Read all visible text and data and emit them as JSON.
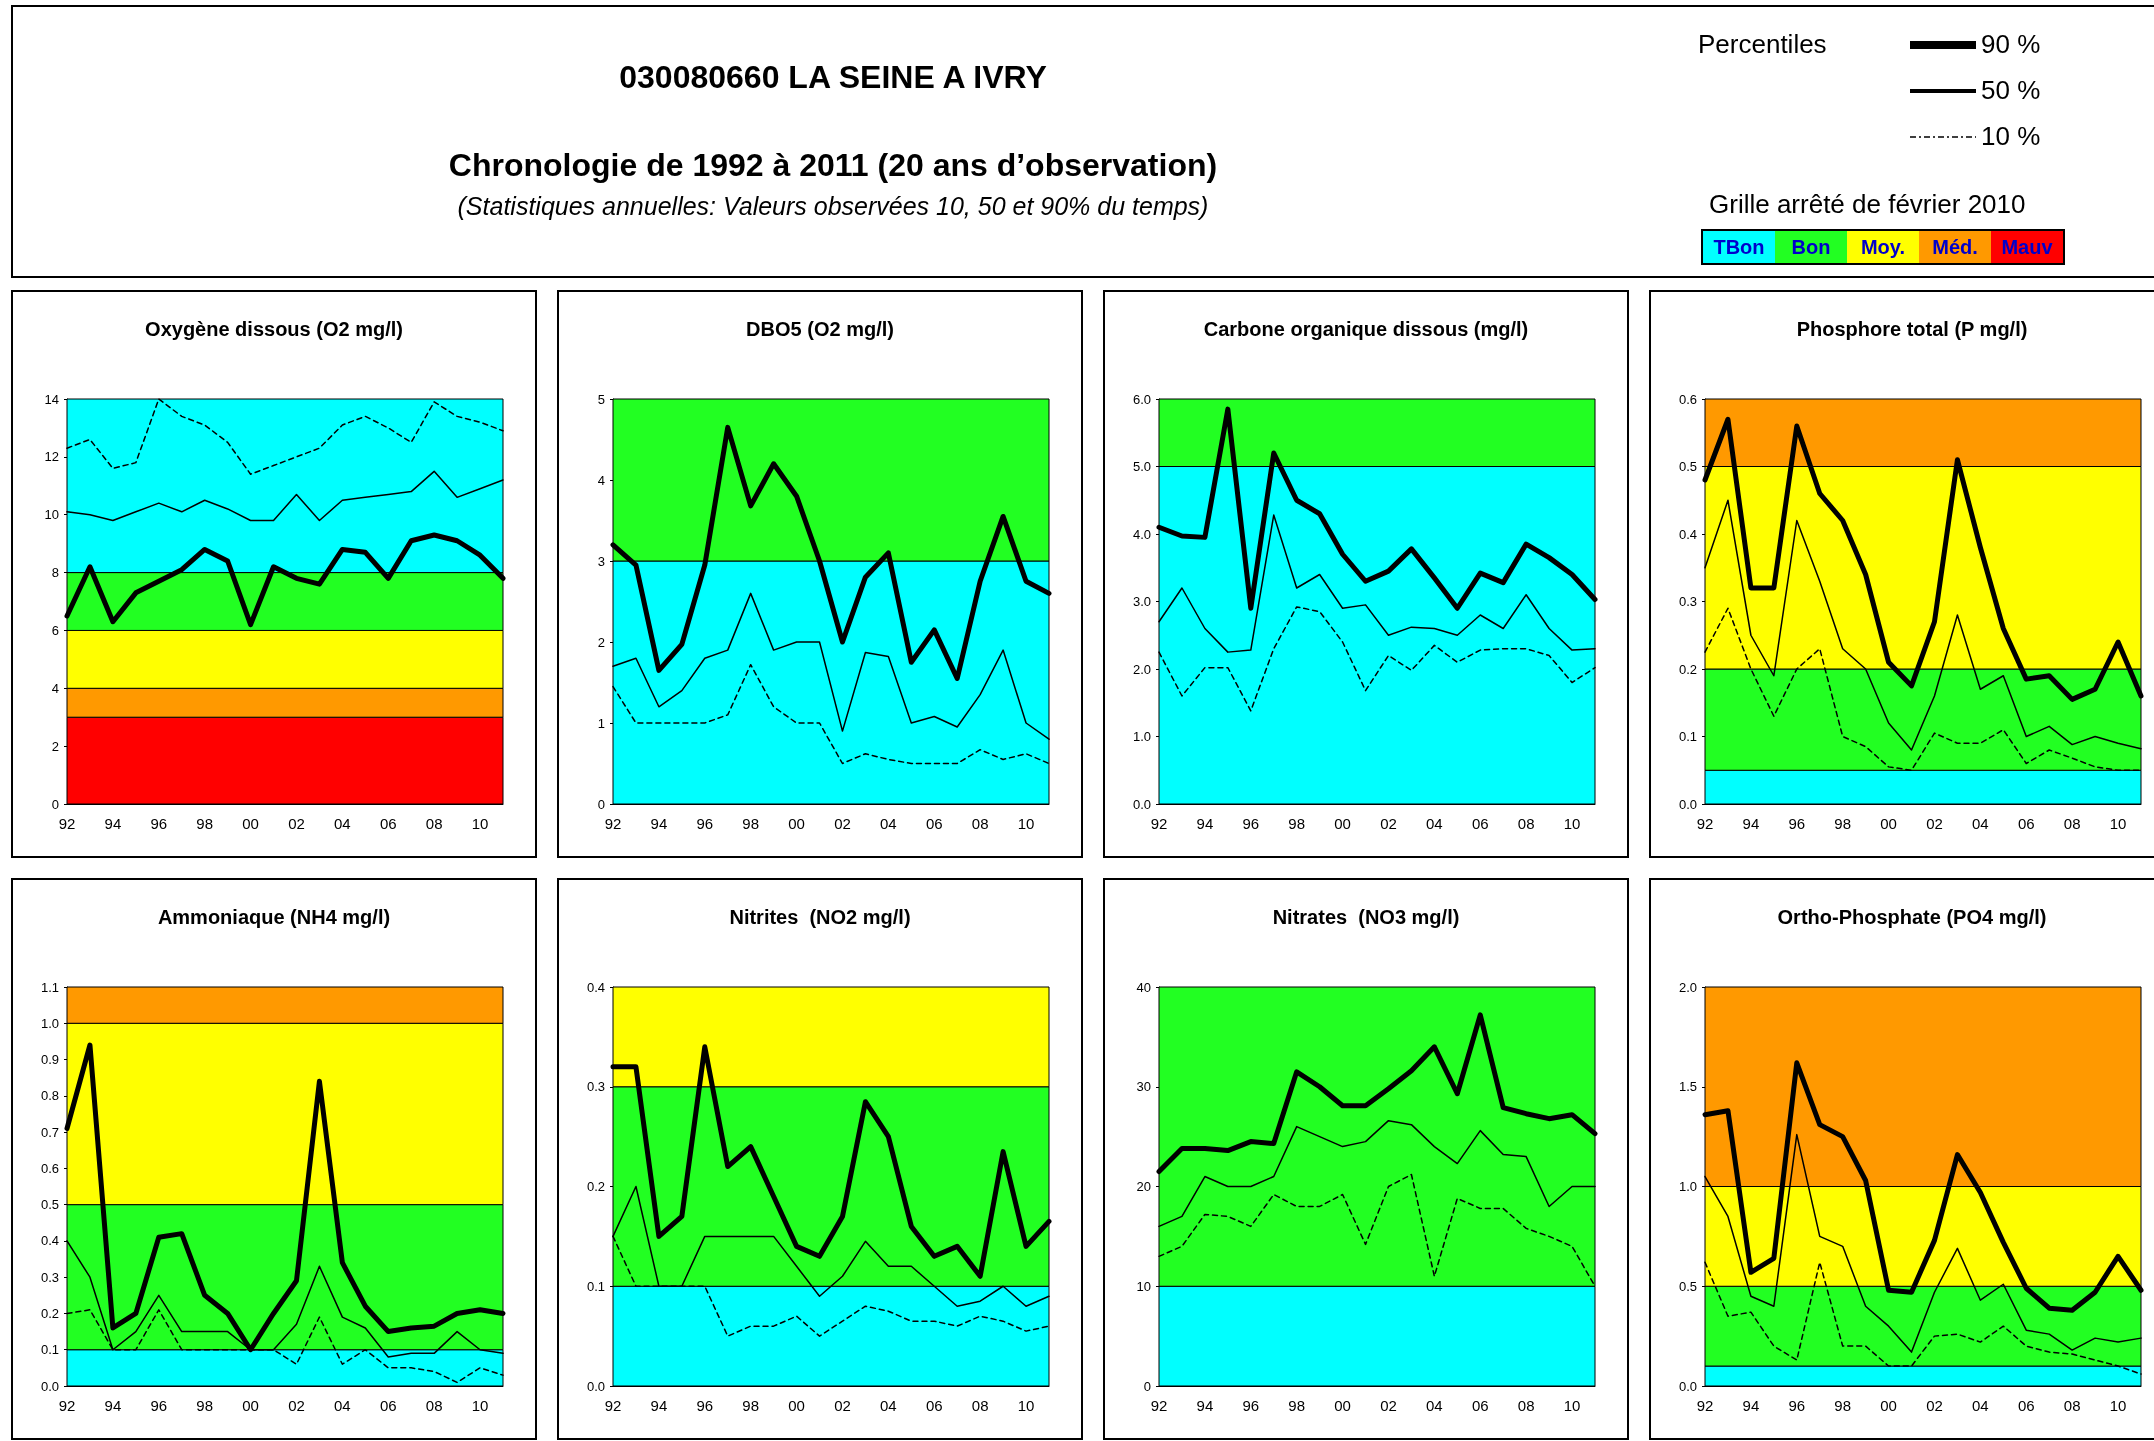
{
  "chart_data": [
    {
      "type": "other",
      "title": "030080660 LA SEINE A IVRY",
      "subtitle": "Chronologie de 1992 à 2011 (20 ans d’observation)",
      "annotations": [
        "(Statistiques annuelles: Valeurs observées 10, 50 et 90% du temps)",
        "Percentiles",
        "90 %",
        "50 %",
        "10 %",
        "Grille arrêté de février 2010"
      ],
      "categories": [
        "TBon",
        "Bon",
        "Moy.",
        "Méd.",
        "Mauv"
      ],
      "colors": [
        "#00ffff",
        "#22ff22",
        "#ffff00",
        "#ff9900",
        "#ff0000"
      ]
    },
    {
      "type": "line",
      "title": "Oxygène dissous (O2 mg/l)",
      "categories": [
        "92",
        null,
        "94",
        null,
        "96",
        null,
        "98",
        null,
        "00",
        null,
        "02",
        null,
        "04",
        null,
        "06",
        null,
        "08",
        null,
        "10",
        null
      ],
      "ylim": [
        0,
        14
      ],
      "yticks": [
        0,
        2,
        4,
        6,
        8,
        10,
        12,
        14
      ],
      "marker": "none",
      "bands": [
        {
          "axis": "y",
          "from": 0,
          "to": 3,
          "color": "#ff0000"
        },
        {
          "axis": "y",
          "from": 3,
          "to": 4,
          "color": "#ff9900"
        },
        {
          "axis": "y",
          "from": 4,
          "to": 6,
          "color": "#ffff00"
        },
        {
          "axis": "y",
          "from": 6,
          "to": 8,
          "color": "#22ff22"
        },
        {
          "axis": "y",
          "from": 8,
          "to": 14,
          "color": "#00ffff"
        }
      ],
      "series": [
        {
          "color": "#000000",
          "line_style": "solid",
          "values": [
            6.5,
            8.2,
            6.3,
            7.3,
            7.7,
            8.1,
            8.8,
            8.4,
            6.2,
            8.2,
            7.8,
            7.6,
            8.8,
            8.7,
            7.8,
            9.1,
            9.3,
            9.1,
            8.6,
            7.8
          ]
        },
        {
          "color": "#000000",
          "line_style": "solid",
          "values": [
            10.1,
            10.0,
            9.8,
            10.1,
            10.4,
            10.1,
            10.5,
            10.2,
            9.8,
            9.8,
            10.7,
            9.8,
            10.5,
            10.6,
            10.7,
            10.8,
            11.5,
            10.6,
            10.9,
            11.2
          ]
        },
        {
          "color": "#000000",
          "line_style": "dashed",
          "values": [
            12.3,
            12.6,
            11.6,
            11.8,
            14.0,
            13.4,
            13.1,
            12.5,
            11.4,
            11.7,
            12.0,
            12.3,
            13.1,
            13.4,
            13.0,
            12.5,
            13.9,
            13.4,
            13.2,
            12.9
          ]
        }
      ]
    },
    {
      "type": "line",
      "title": "DBO5 (O2 mg/l)",
      "categories": [
        "92",
        null,
        "94",
        null,
        "96",
        null,
        "98",
        null,
        "00",
        null,
        "02",
        null,
        "04",
        null,
        "06",
        null,
        "08",
        null,
        "10",
        null
      ],
      "ylim": [
        0,
        5
      ],
      "yticks": [
        0,
        1,
        2,
        3,
        4,
        5
      ],
      "marker": "none",
      "bands": [
        {
          "axis": "y",
          "from": 0,
          "to": 3,
          "color": "#00ffff"
        },
        {
          "axis": "y",
          "from": 3,
          "to": 5,
          "color": "#22ff22"
        }
      ],
      "series": [
        {
          "color": "#000000",
          "line_style": "solid",
          "values": [
            3.2,
            2.95,
            1.65,
            1.97,
            2.95,
            4.65,
            3.68,
            4.2,
            3.8,
            3.0,
            2.0,
            2.8,
            3.1,
            1.75,
            2.15,
            1.55,
            2.75,
            3.55,
            2.75,
            2.6
          ]
        },
        {
          "color": "#000000",
          "line_style": "solid",
          "values": [
            1.7,
            1.8,
            1.2,
            1.4,
            1.8,
            1.9,
            2.6,
            1.9,
            2.0,
            2.0,
            0.9,
            1.87,
            1.82,
            1.0,
            1.08,
            0.95,
            1.35,
            1.9,
            1.0,
            0.8
          ]
        },
        {
          "color": "#000000",
          "line_style": "dashed",
          "values": [
            1.45,
            1.0,
            1.0,
            1.0,
            1.0,
            1.1,
            1.72,
            1.2,
            1.0,
            1.0,
            0.5,
            0.62,
            0.55,
            0.5,
            0.5,
            0.5,
            0.67,
            0.55,
            0.62,
            0.5
          ]
        }
      ]
    },
    {
      "type": "line",
      "title": "Carbone organique dissous (mg/l)",
      "categories": [
        "92",
        null,
        "94",
        null,
        "96",
        null,
        "98",
        null,
        "00",
        null,
        "02",
        null,
        "04",
        null,
        "06",
        null,
        "08",
        null,
        "10",
        null
      ],
      "ylim": [
        0,
        6
      ],
      "yticks": [
        {
          "value": 0,
          "label": "0.0"
        },
        {
          "value": 1,
          "label": "1.0"
        },
        {
          "value": 2,
          "label": "2.0"
        },
        {
          "value": 3,
          "label": "3.0"
        },
        {
          "value": 4,
          "label": "4.0"
        },
        {
          "value": 5,
          "label": "5.0"
        },
        {
          "value": 6,
          "label": "6.0"
        }
      ],
      "marker": "none",
      "bands": [
        {
          "axis": "y",
          "from": 0,
          "to": 5,
          "color": "#00ffff"
        },
        {
          "axis": "y",
          "from": 5,
          "to": 6,
          "color": "#22ff22"
        }
      ],
      "series": [
        {
          "color": "#000000",
          "line_style": "solid",
          "values": [
            4.1,
            3.97,
            3.95,
            5.85,
            2.9,
            5.2,
            4.5,
            4.3,
            3.7,
            3.3,
            3.45,
            3.78,
            3.35,
            2.9,
            3.42,
            3.28,
            3.85,
            3.65,
            3.4,
            3.03
          ]
        },
        {
          "color": "#000000",
          "line_style": "solid",
          "values": [
            2.7,
            3.2,
            2.6,
            2.25,
            2.28,
            4.28,
            3.2,
            3.4,
            2.9,
            2.95,
            2.5,
            2.62,
            2.6,
            2.5,
            2.8,
            2.6,
            3.1,
            2.6,
            2.28,
            2.3
          ]
        },
        {
          "color": "#000000",
          "line_style": "dashed",
          "values": [
            2.25,
            1.6,
            2.02,
            2.02,
            1.38,
            2.3,
            2.92,
            2.85,
            2.4,
            1.68,
            2.2,
            1.98,
            2.35,
            2.1,
            2.28,
            2.3,
            2.3,
            2.2,
            1.8,
            2.02
          ]
        }
      ]
    },
    {
      "type": "line",
      "title": "Phosphore total (P mg/l)",
      "categories": [
        "92",
        null,
        "94",
        null,
        "96",
        null,
        "98",
        null,
        "00",
        null,
        "02",
        null,
        "04",
        null,
        "06",
        null,
        "08",
        null,
        "10",
        null
      ],
      "ylim": [
        0,
        0.6
      ],
      "yticks": [
        {
          "value": 0,
          "label": "0.0"
        },
        0.1,
        0.2,
        0.3,
        0.4,
        0.5,
        0.6
      ],
      "marker": "none",
      "bands": [
        {
          "axis": "y",
          "from": 0,
          "to": 0.05,
          "color": "#00ffff"
        },
        {
          "axis": "y",
          "from": 0.05,
          "to": 0.2,
          "color": "#22ff22"
        },
        {
          "axis": "y",
          "from": 0.2,
          "to": 0.5,
          "color": "#ffff00"
        },
        {
          "axis": "y",
          "from": 0.5,
          "to": 0.6,
          "color": "#ff9900"
        }
      ],
      "series": [
        {
          "color": "#000000",
          "line_style": "solid",
          "values": [
            0.48,
            0.57,
            0.32,
            0.32,
            0.56,
            0.46,
            0.42,
            0.34,
            0.21,
            0.175,
            0.27,
            0.51,
            0.38,
            0.26,
            0.185,
            0.19,
            0.155,
            0.17,
            0.24,
            0.16
          ]
        },
        {
          "color": "#000000",
          "line_style": "solid",
          "values": [
            0.35,
            0.45,
            0.25,
            0.19,
            0.42,
            0.33,
            0.23,
            0.2,
            0.12,
            0.08,
            0.16,
            0.28,
            0.17,
            0.19,
            0.1,
            0.115,
            0.088,
            0.1,
            0.09,
            0.082
          ]
        },
        {
          "color": "#000000",
          "line_style": "dashed",
          "values": [
            0.225,
            0.29,
            0.2,
            0.13,
            0.2,
            0.23,
            0.1,
            0.085,
            0.055,
            0.05,
            0.105,
            0.09,
            0.09,
            0.11,
            0.06,
            0.08,
            0.068,
            0.055,
            0.05,
            0.05
          ]
        }
      ]
    },
    {
      "type": "line",
      "title": "Ammoniaque (NH4 mg/l)",
      "categories": [
        "92",
        null,
        "94",
        null,
        "96",
        null,
        "98",
        null,
        "00",
        null,
        "02",
        null,
        "04",
        null,
        "06",
        null,
        "08",
        null,
        "10",
        null
      ],
      "ylim": [
        0,
        1.1
      ],
      "yticks": [
        {
          "value": 0,
          "label": "0.0"
        },
        0.1,
        0.2,
        0.3,
        0.4,
        0.5,
        0.6,
        0.7,
        0.8,
        0.9,
        {
          "value": 1,
          "label": "1.0"
        },
        1.1
      ],
      "marker": "none",
      "bands": [
        {
          "axis": "y",
          "from": 0,
          "to": 0.1,
          "color": "#00ffff"
        },
        {
          "axis": "y",
          "from": 0.1,
          "to": 0.5,
          "color": "#22ff22"
        },
        {
          "axis": "y",
          "from": 0.5,
          "to": 1.0,
          "color": "#ffff00"
        },
        {
          "axis": "y",
          "from": 1.0,
          "to": 1.1,
          "color": "#ff9900"
        }
      ],
      "series": [
        {
          "color": "#000000",
          "line_style": "solid",
          "values": [
            0.71,
            0.94,
            0.16,
            0.2,
            0.41,
            0.42,
            0.25,
            0.2,
            0.1,
            0.2,
            0.29,
            0.84,
            0.34,
            0.22,
            0.15,
            0.16,
            0.165,
            0.2,
            0.21,
            0.2
          ]
        },
        {
          "color": "#000000",
          "line_style": "solid",
          "values": [
            0.4,
            0.3,
            0.1,
            0.15,
            0.25,
            0.15,
            0.15,
            0.15,
            0.1,
            0.1,
            0.17,
            0.33,
            0.19,
            0.16,
            0.08,
            0.09,
            0.09,
            0.15,
            0.1,
            0.09
          ]
        },
        {
          "color": "#000000",
          "line_style": "dashed",
          "values": [
            0.2,
            0.21,
            0.1,
            0.1,
            0.21,
            0.1,
            0.1,
            0.1,
            0.1,
            0.1,
            0.06,
            0.19,
            0.06,
            0.1,
            0.05,
            0.05,
            0.04,
            0.01,
            0.05,
            0.03
          ]
        }
      ]
    },
    {
      "type": "line",
      "title": "Nitrites  (NO2 mg/l)",
      "categories": [
        "92",
        null,
        "94",
        null,
        "96",
        null,
        "98",
        null,
        "00",
        null,
        "02",
        null,
        "04",
        null,
        "06",
        null,
        "08",
        null,
        "10",
        null
      ],
      "ylim": [
        0,
        0.4
      ],
      "yticks": [
        {
          "value": 0,
          "label": "0.0"
        },
        0.1,
        0.2,
        0.3,
        0.4
      ],
      "marker": "none",
      "bands": [
        {
          "axis": "y",
          "from": 0,
          "to": 0.1,
          "color": "#00ffff"
        },
        {
          "axis": "y",
          "from": 0.1,
          "to": 0.3,
          "color": "#22ff22"
        },
        {
          "axis": "y",
          "from": 0.3,
          "to": 0.4,
          "color": "#ffff00"
        }
      ],
      "series": [
        {
          "color": "#000000",
          "line_style": "solid",
          "values": [
            0.32,
            0.32,
            0.15,
            0.17,
            0.34,
            0.22,
            0.24,
            0.19,
            0.14,
            0.13,
            0.17,
            0.285,
            0.25,
            0.16,
            0.13,
            0.14,
            0.11,
            0.235,
            0.14,
            0.165
          ]
        },
        {
          "color": "#000000",
          "line_style": "solid",
          "values": [
            0.15,
            0.2,
            0.1,
            0.1,
            0.15,
            0.15,
            0.15,
            0.15,
            0.12,
            0.09,
            0.11,
            0.145,
            0.12,
            0.12,
            0.1,
            0.08,
            0.085,
            0.1,
            0.08,
            0.09
          ]
        },
        {
          "color": "#000000",
          "line_style": "dashed",
          "values": [
            0.15,
            0.1,
            0.1,
            0.1,
            0.1,
            0.05,
            0.06,
            0.06,
            0.07,
            0.05,
            0.065,
            0.08,
            0.075,
            0.065,
            0.065,
            0.06,
            0.07,
            0.065,
            0.055,
            0.06
          ]
        }
      ]
    },
    {
      "type": "line",
      "title": "Nitrates  (NO3 mg/l)",
      "categories": [
        "92",
        null,
        "94",
        null,
        "96",
        null,
        "98",
        null,
        "00",
        null,
        "02",
        null,
        "04",
        null,
        "06",
        null,
        "08",
        null,
        "10",
        null
      ],
      "ylim": [
        0,
        40
      ],
      "yticks": [
        0,
        10,
        20,
        30,
        40
      ],
      "marker": "none",
      "bands": [
        {
          "axis": "y",
          "from": 0,
          "to": 10,
          "color": "#00ffff"
        },
        {
          "axis": "y",
          "from": 10,
          "to": 40,
          "color": "#22ff22"
        }
      ],
      "series": [
        {
          "color": "#000000",
          "line_style": "solid",
          "values": [
            21.5,
            23.8,
            23.8,
            23.6,
            24.5,
            24.3,
            31.5,
            30,
            28.1,
            28.1,
            29.8,
            31.6,
            34,
            29.3,
            37.2,
            27.9,
            27.3,
            26.8,
            27.2,
            25.3
          ]
        },
        {
          "color": "#000000",
          "line_style": "solid",
          "values": [
            16,
            17,
            21,
            20,
            20,
            21,
            26,
            25,
            24,
            24.5,
            26.6,
            26.2,
            24,
            22.3,
            25.6,
            23.2,
            23,
            18,
            20,
            20
          ]
        },
        {
          "color": "#000000",
          "line_style": "dashed",
          "values": [
            13,
            14,
            17.2,
            17,
            16,
            19.2,
            18,
            18,
            19.2,
            14.2,
            20,
            21.2,
            11,
            18.8,
            17.8,
            17.8,
            15.8,
            15,
            14,
            10
          ]
        }
      ]
    },
    {
      "type": "line",
      "title": "Ortho-Phosphate (PO4 mg/l)",
      "categories": [
        "92",
        null,
        "94",
        null,
        "96",
        null,
        "98",
        null,
        "00",
        null,
        "02",
        null,
        "04",
        null,
        "06",
        null,
        "08",
        null,
        "10",
        null
      ],
      "ylim": [
        0,
        2
      ],
      "yticks": [
        {
          "value": 0,
          "label": "0.0"
        },
        0.5,
        {
          "value": 1,
          "label": "1.0"
        },
        1.5,
        {
          "value": 2,
          "label": "2.0"
        }
      ],
      "marker": "none",
      "bands": [
        {
          "axis": "y",
          "from": 0,
          "to": 0.1,
          "color": "#00ffff"
        },
        {
          "axis": "y",
          "from": 0.1,
          "to": 0.5,
          "color": "#22ff22"
        },
        {
          "axis": "y",
          "from": 0.5,
          "to": 1.0,
          "color": "#ffff00"
        },
        {
          "axis": "y",
          "from": 1.0,
          "to": 2.0,
          "color": "#ff9900"
        }
      ],
      "series": [
        {
          "color": "#000000",
          "line_style": "solid",
          "values": [
            1.36,
            1.38,
            0.57,
            0.64,
            1.62,
            1.31,
            1.25,
            1.03,
            0.48,
            0.47,
            0.73,
            1.16,
            0.97,
            0.72,
            0.49,
            0.39,
            0.38,
            0.47,
            0.65,
            0.48
          ]
        },
        {
          "color": "#000000",
          "line_style": "solid",
          "values": [
            1.05,
            0.85,
            0.45,
            0.4,
            1.26,
            0.75,
            0.7,
            0.4,
            0.3,
            0.17,
            0.47,
            0.69,
            0.43,
            0.51,
            0.28,
            0.26,
            0.18,
            0.24,
            0.22,
            0.24
          ]
        },
        {
          "color": "#000000",
          "line_style": "dashed",
          "values": [
            0.62,
            0.35,
            0.37,
            0.2,
            0.13,
            0.62,
            0.2,
            0.2,
            0.1,
            0.1,
            0.25,
            0.26,
            0.22,
            0.3,
            0.2,
            0.17,
            0.16,
            0.13,
            0.1,
            0.06
          ]
        }
      ]
    }
  ]
}
